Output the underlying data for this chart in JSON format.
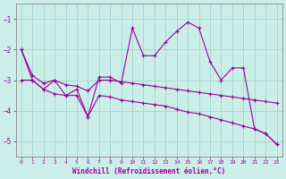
{
  "xlabel": "Windchill (Refroidissement éolien,°C)",
  "background_color": "#cceee8",
  "grid_color": "#99cccc",
  "line_color": "#990099",
  "tick_color": "#990099",
  "label_color": "#990099",
  "spine_color": "#888888",
  "x_values": [
    0,
    1,
    2,
    3,
    4,
    5,
    6,
    7,
    8,
    9,
    10,
    11,
    12,
    13,
    14,
    15,
    16,
    17,
    18,
    19,
    20,
    21,
    22,
    23
  ],
  "y_main": [
    -2.0,
    -3.0,
    -3.3,
    -3.0,
    -3.5,
    -3.3,
    -4.2,
    -2.9,
    -2.9,
    -3.1,
    -1.3,
    -2.2,
    -2.2,
    -1.75,
    -1.4,
    -1.1,
    -1.3,
    -2.4,
    -3.0,
    -2.6,
    -2.6,
    -4.6,
    -4.75,
    -5.1
  ],
  "y_trend1": [
    -2.0,
    -2.85,
    -3.1,
    -3.0,
    -3.15,
    -3.2,
    -3.35,
    -3.0,
    -3.0,
    -3.05,
    -3.1,
    -3.15,
    -3.2,
    -3.25,
    -3.3,
    -3.35,
    -3.4,
    -3.45,
    -3.5,
    -3.55,
    -3.6,
    -3.65,
    -3.7,
    -3.75
  ],
  "y_trend2": [
    -3.0,
    -3.0,
    -3.3,
    -3.45,
    -3.5,
    -3.5,
    -4.2,
    -3.5,
    -3.55,
    -3.65,
    -3.7,
    -3.75,
    -3.8,
    -3.85,
    -3.95,
    -4.05,
    -4.1,
    -4.2,
    -4.3,
    -4.4,
    -4.5,
    -4.6,
    -4.75,
    -5.1
  ],
  "ylim": [
    -5.5,
    -0.5
  ],
  "yticks": [
    -5,
    -4,
    -3,
    -2,
    -1
  ],
  "xlim": [
    -0.5,
    23.5
  ],
  "xticks": [
    0,
    1,
    2,
    3,
    4,
    5,
    6,
    7,
    8,
    9,
    10,
    11,
    12,
    13,
    14,
    15,
    16,
    17,
    18,
    19,
    20,
    21,
    22,
    23
  ]
}
